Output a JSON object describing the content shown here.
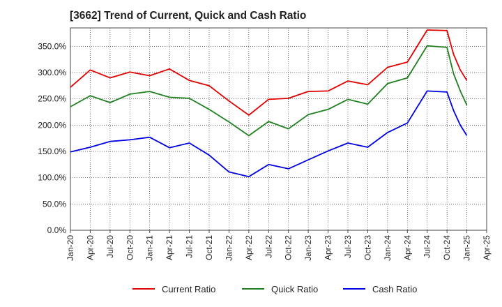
{
  "chart_data": {
    "type": "line",
    "title": "[3662]  Trend of Current, Quick and Cash Ratio",
    "xlabel": "",
    "ylabel": "",
    "ylim": [
      0,
      385
    ],
    "y_ticks": [
      0,
      50,
      100,
      150,
      200,
      250,
      300,
      350
    ],
    "y_tick_labels": [
      "0.0%",
      "50.0%",
      "100.0%",
      "150.0%",
      "200.0%",
      "250.0%",
      "300.0%",
      "350.0%"
    ],
    "x_tick_labels": [
      "Jan-20",
      "Apr-20",
      "Jul-20",
      "Oct-20",
      "Jan-21",
      "Apr-21",
      "Jul-21",
      "Oct-21",
      "Jan-22",
      "Apr-22",
      "Jul-22",
      "Oct-22",
      "Jan-23",
      "Apr-23",
      "Jul-23",
      "Oct-23",
      "Jan-24",
      "Apr-24",
      "Jul-24",
      "Oct-24",
      "Jan-25",
      "Apr-25"
    ],
    "grid": true,
    "legend_position": "bottom",
    "series": [
      {
        "name": "Current Ratio",
        "color": "#e00000",
        "points": [
          [
            0,
            272
          ],
          [
            1,
            305
          ],
          [
            2,
            290
          ],
          [
            3,
            301
          ],
          [
            4,
            294
          ],
          [
            5,
            307
          ],
          [
            6,
            285
          ],
          [
            7,
            275
          ],
          [
            8,
            246
          ],
          [
            9,
            219
          ],
          [
            10,
            249
          ],
          [
            11,
            251
          ],
          [
            12,
            264
          ],
          [
            13,
            265
          ],
          [
            14,
            284
          ],
          [
            15,
            277
          ],
          [
            16,
            310
          ],
          [
            17,
            320
          ],
          [
            18,
            381
          ],
          [
            19,
            380
          ],
          [
            19.33,
            335
          ],
          [
            19.67,
            305
          ],
          [
            20,
            285
          ]
        ]
      },
      {
        "name": "Quick Ratio",
        "color": "#208020",
        "points": [
          [
            0,
            235
          ],
          [
            1,
            256
          ],
          [
            2,
            243
          ],
          [
            3,
            259
          ],
          [
            4,
            264
          ],
          [
            5,
            253
          ],
          [
            6,
            251
          ],
          [
            7,
            230
          ],
          [
            8,
            206
          ],
          [
            9,
            180
          ],
          [
            10,
            207
          ],
          [
            11,
            193
          ],
          [
            12,
            220
          ],
          [
            13,
            230
          ],
          [
            14,
            249
          ],
          [
            15,
            240
          ],
          [
            16,
            279
          ],
          [
            17,
            290
          ],
          [
            18,
            351
          ],
          [
            19,
            348
          ],
          [
            19.33,
            298
          ],
          [
            19.67,
            265
          ],
          [
            20,
            238
          ]
        ]
      },
      {
        "name": "Cash Ratio",
        "color": "#0000e0",
        "points": [
          [
            0,
            149
          ],
          [
            1,
            158
          ],
          [
            2,
            169
          ],
          [
            3,
            172
          ],
          [
            4,
            177
          ],
          [
            5,
            157
          ],
          [
            6,
            166
          ],
          [
            7,
            143
          ],
          [
            8,
            111
          ],
          [
            9,
            102
          ],
          [
            10,
            125
          ],
          [
            11,
            117
          ],
          [
            12,
            134
          ],
          [
            13,
            151
          ],
          [
            14,
            166
          ],
          [
            15,
            158
          ],
          [
            16,
            186
          ],
          [
            17,
            204
          ],
          [
            18,
            265
          ],
          [
            19,
            263
          ],
          [
            19.33,
            228
          ],
          [
            19.67,
            200
          ],
          [
            20,
            180
          ]
        ]
      }
    ]
  }
}
